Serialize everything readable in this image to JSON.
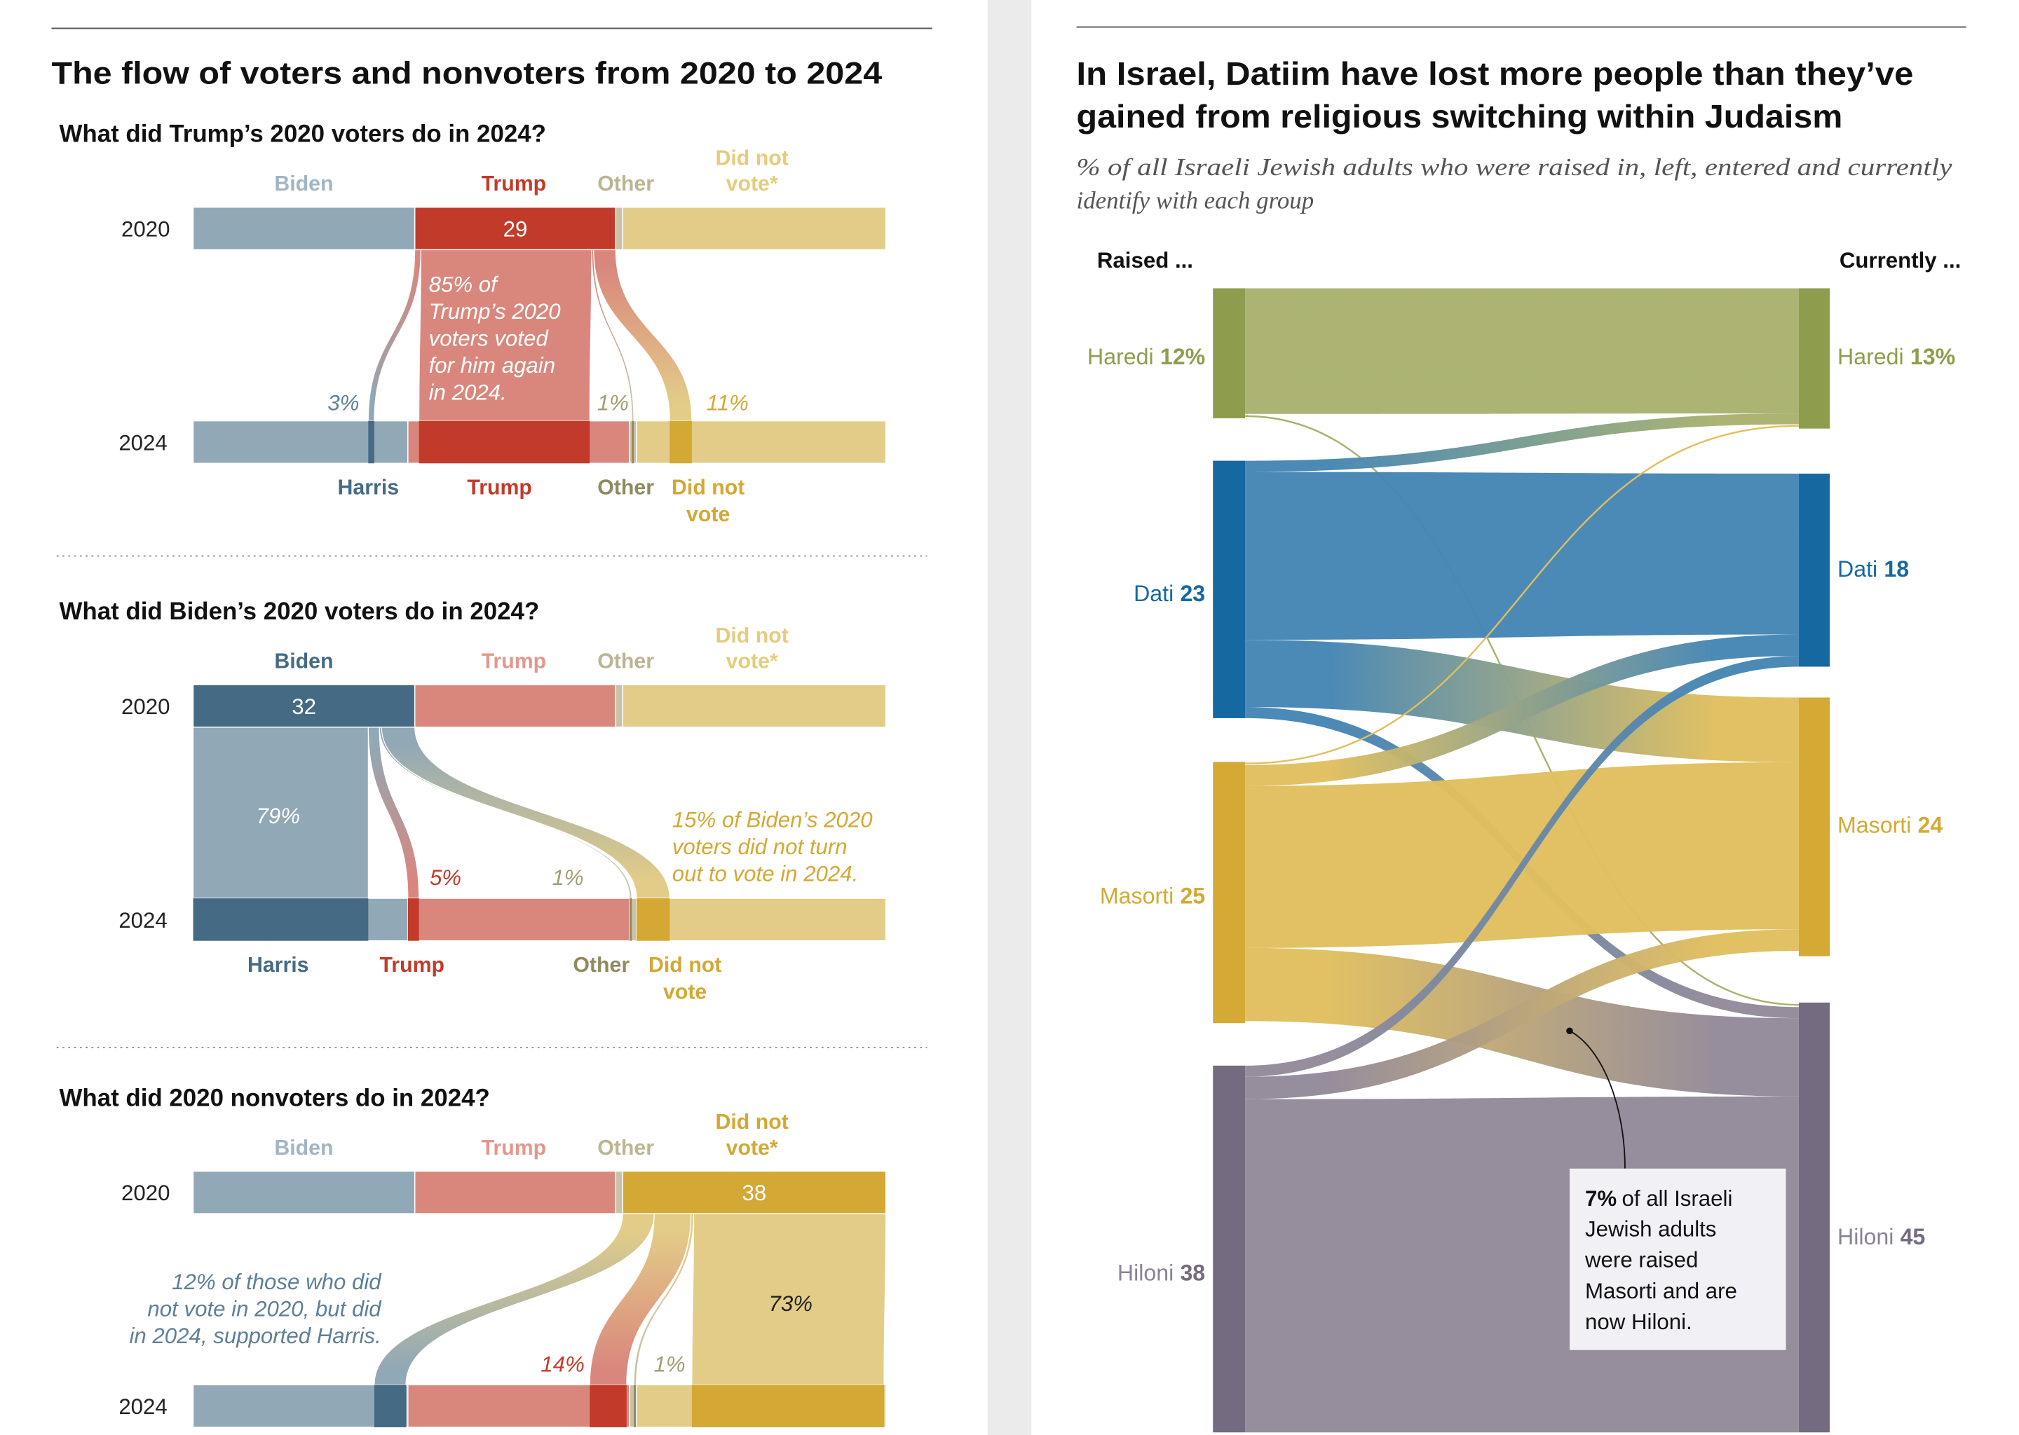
{
  "chart_data": [
    {
      "type": "flow",
      "title": "The flow of voters and nonvoters from 2020 to 2024",
      "years": [
        "2020",
        "2024"
      ],
      "colors": {
        "light": [
          "#91a8b6",
          "#d9877d",
          "#c8c3a8",
          "#e3cc87"
        ],
        "dark": [
          "#456a84",
          "#c23b2a",
          "#8f8a5f",
          "#d3a834"
        ],
        "label_light": [
          "#a2b5c2",
          "#e3978c",
          "#bdb493",
          "#e5cc7c"
        ],
        "pct": [
          "#5f7f96",
          "#c23b2a",
          "#a39c74",
          "#d3a834"
        ]
      },
      "panels": [
        {
          "title": "What did Trump’s 2020 voters do in 2024?",
          "focus_index": 1,
          "labels_2020": [
            [
              "Biden"
            ],
            [
              "Trump"
            ],
            [
              "Other"
            ],
            [
              "Did not",
              "vote*"
            ]
          ],
          "labels_2024": [
            [
              "Harris"
            ],
            [
              "Trump"
            ],
            [
              "Other"
            ],
            [
              "Did not",
              "vote"
            ]
          ],
          "values_2020": [
            32,
            29,
            1,
            38
          ],
          "values_2024": [
            31,
            32,
            1,
            36
          ],
          "flows_pct": [
            3,
            85,
            1,
            11
          ],
          "bar_label": "29",
          "flow_labels": [
            "3%",
            "",
            "1%",
            "11%"
          ],
          "annotation": [
            "85% of",
            "Trump’s 2020",
            "voters voted",
            "for him again",
            "in 2024."
          ]
        },
        {
          "title": "What did Biden’s 2020 voters do in 2024?",
          "focus_index": 0,
          "labels_2020": [
            [
              "Biden"
            ],
            [
              "Trump"
            ],
            [
              "Other"
            ],
            [
              "Did not",
              "vote*"
            ]
          ],
          "labels_2024": [
            [
              "Harris"
            ],
            [
              "Trump"
            ],
            [
              "Other"
            ],
            [
              "Did not",
              "vote"
            ]
          ],
          "values_2020": [
            32,
            29,
            1,
            38
          ],
          "values_2024": [
            31,
            32,
            1,
            36
          ],
          "flows_pct": [
            79,
            5,
            1,
            15
          ],
          "bar_label": "32",
          "flow_labels": [
            "79%",
            "5%",
            "1%",
            ""
          ],
          "annotation": [
            "15% of Biden’s 2020",
            "voters did not turn",
            "out to vote in 2024."
          ]
        },
        {
          "title": "What did 2020 nonvoters do in 2024?",
          "focus_index": 3,
          "labels_2020": [
            [
              "Biden"
            ],
            [
              "Trump"
            ],
            [
              "Other"
            ],
            [
              "Did not",
              "vote*"
            ]
          ],
          "labels_2024": [],
          "values_2020": [
            32,
            29,
            1,
            38
          ],
          "values_2024": [
            31,
            32,
            1,
            36
          ],
          "flows_pct": [
            12,
            14,
            1,
            73
          ],
          "bar_label": "38",
          "flow_labels": [
            "",
            "14%",
            "1%",
            "73%"
          ],
          "annotation": [
            "12% of those who did",
            "not vote in 2020, but did",
            "in 2024, supported Harris."
          ]
        }
      ]
    },
    {
      "type": "sankey",
      "title": [
        "In Israel, Datiim have lost more people than they’ve",
        "gained from religious switching within Judaism"
      ],
      "subtitle": [
        "% of all Israeli Jewish adults who were raised in, left, entered and currently",
        "identify with each group"
      ],
      "left_header": "Raised ...",
      "right_header": "Currently ...",
      "nodes": [
        "Haredi",
        "Dati",
        "Masorti",
        "Hiloni"
      ],
      "raised": [
        "12%",
        "23",
        "25",
        "38"
      ],
      "currently": [
        "13%",
        "18",
        "24",
        "45"
      ],
      "raised_values": [
        12,
        23,
        25,
        38
      ],
      "currently_values": [
        13,
        18,
        24,
        45
      ],
      "node_colors": [
        "#8e9d4d",
        "#1668a0",
        "#d4a934",
        "#756b80"
      ],
      "flow_colors": [
        "#a9b16f",
        "#4586b4",
        "#e0bf5e",
        "#938a99"
      ],
      "label_colors": [
        "#8e9d4d",
        "#1668a0",
        "#d4a934",
        "#8a8296"
      ],
      "flows": [
        {
          "from": "Haredi",
          "to": "Haredi",
          "value": 11.6
        },
        {
          "from": "Haredi",
          "to": "Hiloni",
          "value": 0.4
        },
        {
          "from": "Dati",
          "to": "Haredi",
          "value": 1
        },
        {
          "from": "Dati",
          "to": "Dati",
          "value": 15
        },
        {
          "from": "Dati",
          "to": "Masorti",
          "value": 6
        },
        {
          "from": "Dati",
          "to": "Hiloni",
          "value": 1
        },
        {
          "from": "Masorti",
          "to": "Haredi",
          "value": 0.3
        },
        {
          "from": "Masorti",
          "to": "Dati",
          "value": 2
        },
        {
          "from": "Masorti",
          "to": "Masorti",
          "value": 15.5
        },
        {
          "from": "Masorti",
          "to": "Hiloni",
          "value": 7
        },
        {
          "from": "Hiloni",
          "to": "Dati",
          "value": 1
        },
        {
          "from": "Hiloni",
          "to": "Masorti",
          "value": 2
        },
        {
          "from": "Hiloni",
          "to": "Hiloni",
          "value": 35
        }
      ],
      "callout": {
        "bold": "7%",
        "lines": [
          "of all Israeli",
          "Jewish adults",
          "were raised",
          "Masorti and are",
          "now Hiloni."
        ]
      }
    }
  ]
}
